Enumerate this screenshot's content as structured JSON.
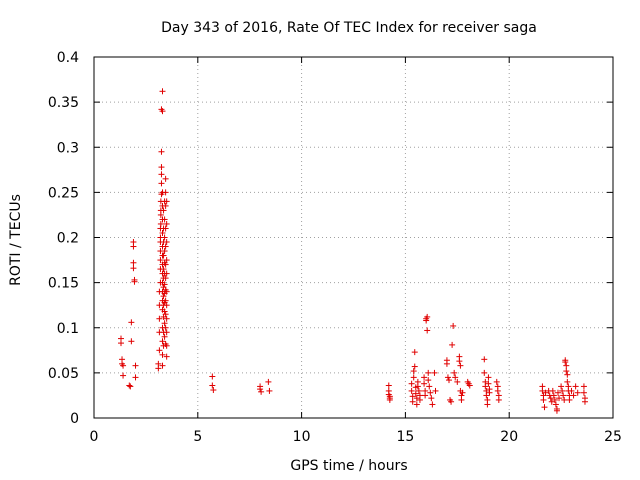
{
  "chart_data": {
    "type": "scatter",
    "title": "Day 343 of 2016, Rate Of TEC Index for receiver saga",
    "xlabel": "GPS time / hours",
    "ylabel": "ROTI / TECUs",
    "xlim": [
      0,
      25
    ],
    "ylim": [
      0,
      0.4
    ],
    "xticks": [
      "0",
      "5",
      "10",
      "15",
      "20",
      "25"
    ],
    "yticks": [
      "0",
      "0.05",
      "0.1",
      "0.15",
      "0.2",
      "0.25",
      "0.3",
      "0.35",
      "0.4"
    ],
    "grid": true,
    "marker": "+",
    "color": "#e00000",
    "series": [
      {
        "name": "ROTI",
        "points": [
          [
            1.3,
            0.088
          ],
          [
            1.3,
            0.083
          ],
          [
            1.35,
            0.065
          ],
          [
            1.35,
            0.06
          ],
          [
            1.4,
            0.058
          ],
          [
            1.4,
            0.047
          ],
          [
            1.7,
            0.036
          ],
          [
            1.75,
            0.035
          ],
          [
            1.8,
            0.085
          ],
          [
            1.8,
            0.106
          ],
          [
            1.9,
            0.195
          ],
          [
            1.9,
            0.19
          ],
          [
            1.9,
            0.172
          ],
          [
            1.9,
            0.166
          ],
          [
            1.95,
            0.153
          ],
          [
            1.95,
            0.151
          ],
          [
            2.0,
            0.058
          ],
          [
            2.0,
            0.045
          ],
          [
            3.1,
            0.055
          ],
          [
            3.1,
            0.06
          ],
          [
            3.15,
            0.075
          ],
          [
            3.15,
            0.095
          ],
          [
            3.15,
            0.11
          ],
          [
            3.15,
            0.125
          ],
          [
            3.15,
            0.14
          ],
          [
            3.2,
            0.15
          ],
          [
            3.2,
            0.165
          ],
          [
            3.2,
            0.175
          ],
          [
            3.2,
            0.185
          ],
          [
            3.2,
            0.195
          ],
          [
            3.2,
            0.2
          ],
          [
            3.2,
            0.21
          ],
          [
            3.22,
            0.215
          ],
          [
            3.22,
            0.225
          ],
          [
            3.22,
            0.23
          ],
          [
            3.22,
            0.24
          ],
          [
            3.25,
            0.248
          ],
          [
            3.25,
            0.26
          ],
          [
            3.25,
            0.27
          ],
          [
            3.25,
            0.278
          ],
          [
            3.25,
            0.295
          ],
          [
            3.25,
            0.342
          ],
          [
            3.3,
            0.362
          ],
          [
            3.3,
            0.34
          ],
          [
            3.3,
            0.25
          ],
          [
            3.3,
            0.235
          ],
          [
            3.3,
            0.22
          ],
          [
            3.3,
            0.205
          ],
          [
            3.3,
            0.19
          ],
          [
            3.3,
            0.18
          ],
          [
            3.3,
            0.17
          ],
          [
            3.3,
            0.16
          ],
          [
            3.3,
            0.15
          ],
          [
            3.3,
            0.14
          ],
          [
            3.3,
            0.13
          ],
          [
            3.3,
            0.12
          ],
          [
            3.3,
            0.1
          ],
          [
            3.3,
            0.085
          ],
          [
            3.3,
            0.07
          ],
          [
            3.3,
            0.058
          ],
          [
            3.35,
            0.23
          ],
          [
            3.35,
            0.21
          ],
          [
            3.35,
            0.195
          ],
          [
            3.35,
            0.18
          ],
          [
            3.35,
            0.165
          ],
          [
            3.35,
            0.155
          ],
          [
            3.35,
            0.145
          ],
          [
            3.35,
            0.135
          ],
          [
            3.35,
            0.125
          ],
          [
            3.35,
            0.112
          ],
          [
            3.35,
            0.095
          ],
          [
            3.35,
            0.08
          ],
          [
            3.4,
            0.24
          ],
          [
            3.4,
            0.22
          ],
          [
            3.4,
            0.2
          ],
          [
            3.4,
            0.185
          ],
          [
            3.4,
            0.172
          ],
          [
            3.4,
            0.16
          ],
          [
            3.4,
            0.148
          ],
          [
            3.4,
            0.138
          ],
          [
            3.4,
            0.128
          ],
          [
            3.4,
            0.118
          ],
          [
            3.4,
            0.105
          ],
          [
            3.4,
            0.09
          ],
          [
            3.45,
            0.265
          ],
          [
            3.45,
            0.25
          ],
          [
            3.45,
            0.235
          ],
          [
            3.45,
            0.21
          ],
          [
            3.45,
            0.19
          ],
          [
            3.45,
            0.17
          ],
          [
            3.45,
            0.155
          ],
          [
            3.45,
            0.142
          ],
          [
            3.45,
            0.13
          ],
          [
            3.45,
            0.115
          ],
          [
            3.45,
            0.1
          ],
          [
            3.45,
            0.082
          ],
          [
            3.5,
            0.24
          ],
          [
            3.5,
            0.215
          ],
          [
            3.5,
            0.195
          ],
          [
            3.5,
            0.175
          ],
          [
            3.5,
            0.16
          ],
          [
            3.5,
            0.14
          ],
          [
            3.5,
            0.125
          ],
          [
            3.5,
            0.11
          ],
          [
            3.5,
            0.095
          ],
          [
            3.5,
            0.08
          ],
          [
            3.5,
            0.068
          ],
          [
            5.7,
            0.046
          ],
          [
            5.7,
            0.036
          ],
          [
            5.75,
            0.031
          ],
          [
            8.0,
            0.035
          ],
          [
            8.0,
            0.032
          ],
          [
            8.05,
            0.029
          ],
          [
            8.4,
            0.04
          ],
          [
            8.45,
            0.03
          ],
          [
            14.2,
            0.036
          ],
          [
            14.2,
            0.03
          ],
          [
            14.2,
            0.026
          ],
          [
            14.25,
            0.022
          ],
          [
            14.25,
            0.02
          ],
          [
            14.25,
            0.024
          ],
          [
            15.3,
            0.038
          ],
          [
            15.3,
            0.03
          ],
          [
            15.35,
            0.024
          ],
          [
            15.35,
            0.018
          ],
          [
            15.4,
            0.045
          ],
          [
            15.4,
            0.052
          ],
          [
            15.45,
            0.057
          ],
          [
            15.45,
            0.073
          ],
          [
            15.5,
            0.034
          ],
          [
            15.5,
            0.027
          ],
          [
            15.55,
            0.022
          ],
          [
            15.55,
            0.015
          ],
          [
            15.6,
            0.04
          ],
          [
            15.6,
            0.035
          ],
          [
            15.65,
            0.03
          ],
          [
            15.7,
            0.025
          ],
          [
            15.7,
            0.02
          ],
          [
            15.9,
            0.045
          ],
          [
            15.9,
            0.038
          ],
          [
            15.95,
            0.03
          ],
          [
            15.95,
            0.025
          ],
          [
            16.0,
            0.11
          ],
          [
            16.0,
            0.108
          ],
          [
            16.05,
            0.112
          ],
          [
            16.05,
            0.097
          ],
          [
            16.1,
            0.05
          ],
          [
            16.1,
            0.042
          ],
          [
            16.15,
            0.035
          ],
          [
            16.2,
            0.028
          ],
          [
            16.25,
            0.022
          ],
          [
            16.3,
            0.015
          ],
          [
            16.4,
            0.05
          ],
          [
            16.45,
            0.03
          ],
          [
            17.0,
            0.064
          ],
          [
            17.0,
            0.06
          ],
          [
            17.05,
            0.045
          ],
          [
            17.1,
            0.042
          ],
          [
            17.15,
            0.02
          ],
          [
            17.2,
            0.018
          ],
          [
            17.25,
            0.081
          ],
          [
            17.3,
            0.102
          ],
          [
            17.35,
            0.05
          ],
          [
            17.4,
            0.045
          ],
          [
            17.5,
            0.04
          ],
          [
            17.6,
            0.068
          ],
          [
            17.6,
            0.063
          ],
          [
            17.65,
            0.058
          ],
          [
            17.65,
            0.03
          ],
          [
            17.7,
            0.025
          ],
          [
            17.7,
            0.02
          ],
          [
            17.75,
            0.028
          ],
          [
            18.0,
            0.04
          ],
          [
            18.05,
            0.038
          ],
          [
            18.1,
            0.036
          ],
          [
            18.8,
            0.065
          ],
          [
            18.8,
            0.05
          ],
          [
            18.85,
            0.04
          ],
          [
            18.85,
            0.035
          ],
          [
            18.9,
            0.03
          ],
          [
            18.9,
            0.025
          ],
          [
            18.95,
            0.02
          ],
          [
            18.95,
            0.015
          ],
          [
            19.0,
            0.045
          ],
          [
            19.0,
            0.038
          ],
          [
            19.05,
            0.032
          ],
          [
            19.05,
            0.028
          ],
          [
            19.4,
            0.04
          ],
          [
            19.45,
            0.035
          ],
          [
            19.45,
            0.03
          ],
          [
            19.5,
            0.025
          ],
          [
            19.5,
            0.02
          ],
          [
            21.6,
            0.035
          ],
          [
            21.6,
            0.03
          ],
          [
            21.65,
            0.025
          ],
          [
            21.65,
            0.02
          ],
          [
            21.7,
            0.012
          ],
          [
            21.75,
            0.028
          ],
          [
            21.9,
            0.03
          ],
          [
            21.95,
            0.025
          ],
          [
            22.0,
            0.022
          ],
          [
            22.05,
            0.018
          ],
          [
            22.1,
            0.03
          ],
          [
            22.15,
            0.025
          ],
          [
            22.2,
            0.02
          ],
          [
            22.25,
            0.015
          ],
          [
            22.3,
            0.01
          ],
          [
            22.3,
            0.008
          ],
          [
            22.35,
            0.028
          ],
          [
            22.4,
            0.022
          ],
          [
            22.5,
            0.035
          ],
          [
            22.55,
            0.03
          ],
          [
            22.6,
            0.025
          ],
          [
            22.65,
            0.02
          ],
          [
            22.7,
            0.064
          ],
          [
            22.7,
            0.062
          ],
          [
            22.75,
            0.058
          ],
          [
            22.75,
            0.052
          ],
          [
            22.8,
            0.048
          ],
          [
            22.8,
            0.04
          ],
          [
            22.85,
            0.035
          ],
          [
            22.85,
            0.03
          ],
          [
            22.9,
            0.025
          ],
          [
            22.9,
            0.02
          ],
          [
            23.0,
            0.03
          ],
          [
            23.1,
            0.025
          ],
          [
            23.2,
            0.035
          ],
          [
            23.3,
            0.028
          ],
          [
            23.6,
            0.035
          ],
          [
            23.6,
            0.028
          ],
          [
            23.65,
            0.022
          ],
          [
            23.65,
            0.018
          ]
        ]
      }
    ]
  }
}
